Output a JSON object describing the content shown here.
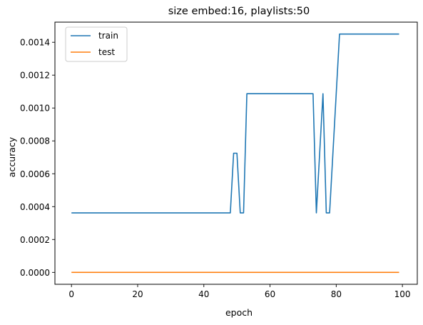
{
  "chart_data": {
    "type": "line",
    "title": "size embed:16, playlists:50",
    "xlabel": "epoch",
    "ylabel": "accuracy",
    "xlim": [
      -5,
      104.5
    ],
    "ylim": [
      -7.25e-05,
      0.0015225
    ],
    "xticks": [
      0,
      20,
      40,
      60,
      80,
      100
    ],
    "xtick_labels": [
      "0",
      "20",
      "40",
      "60",
      "80",
      "100"
    ],
    "yticks": [
      0.0,
      0.0002,
      0.0004,
      0.0006,
      0.0008,
      0.001,
      0.0012,
      0.0014
    ],
    "ytick_labels": [
      "0.0000",
      "0.0002",
      "0.0004",
      "0.0006",
      "0.0008",
      "0.0010",
      "0.0012",
      "0.0014"
    ],
    "grid": false,
    "legend_position": "upper-left",
    "series": [
      {
        "name": "train",
        "color": "#1f77b4",
        "x": [
          0,
          48,
          49,
          50,
          51,
          52,
          53,
          73,
          74,
          75,
          76,
          77,
          78,
          81,
          99
        ],
        "y": [
          0.000362,
          0.000362,
          0.000725,
          0.000725,
          0.000362,
          0.000362,
          0.001087,
          0.001087,
          0.000362,
          0.000725,
          0.001087,
          0.000362,
          0.000362,
          0.00145,
          0.00145
        ]
      },
      {
        "name": "test",
        "color": "#ff7f0e",
        "x": [
          0,
          99
        ],
        "y": [
          0.0,
          0.0
        ]
      }
    ]
  }
}
